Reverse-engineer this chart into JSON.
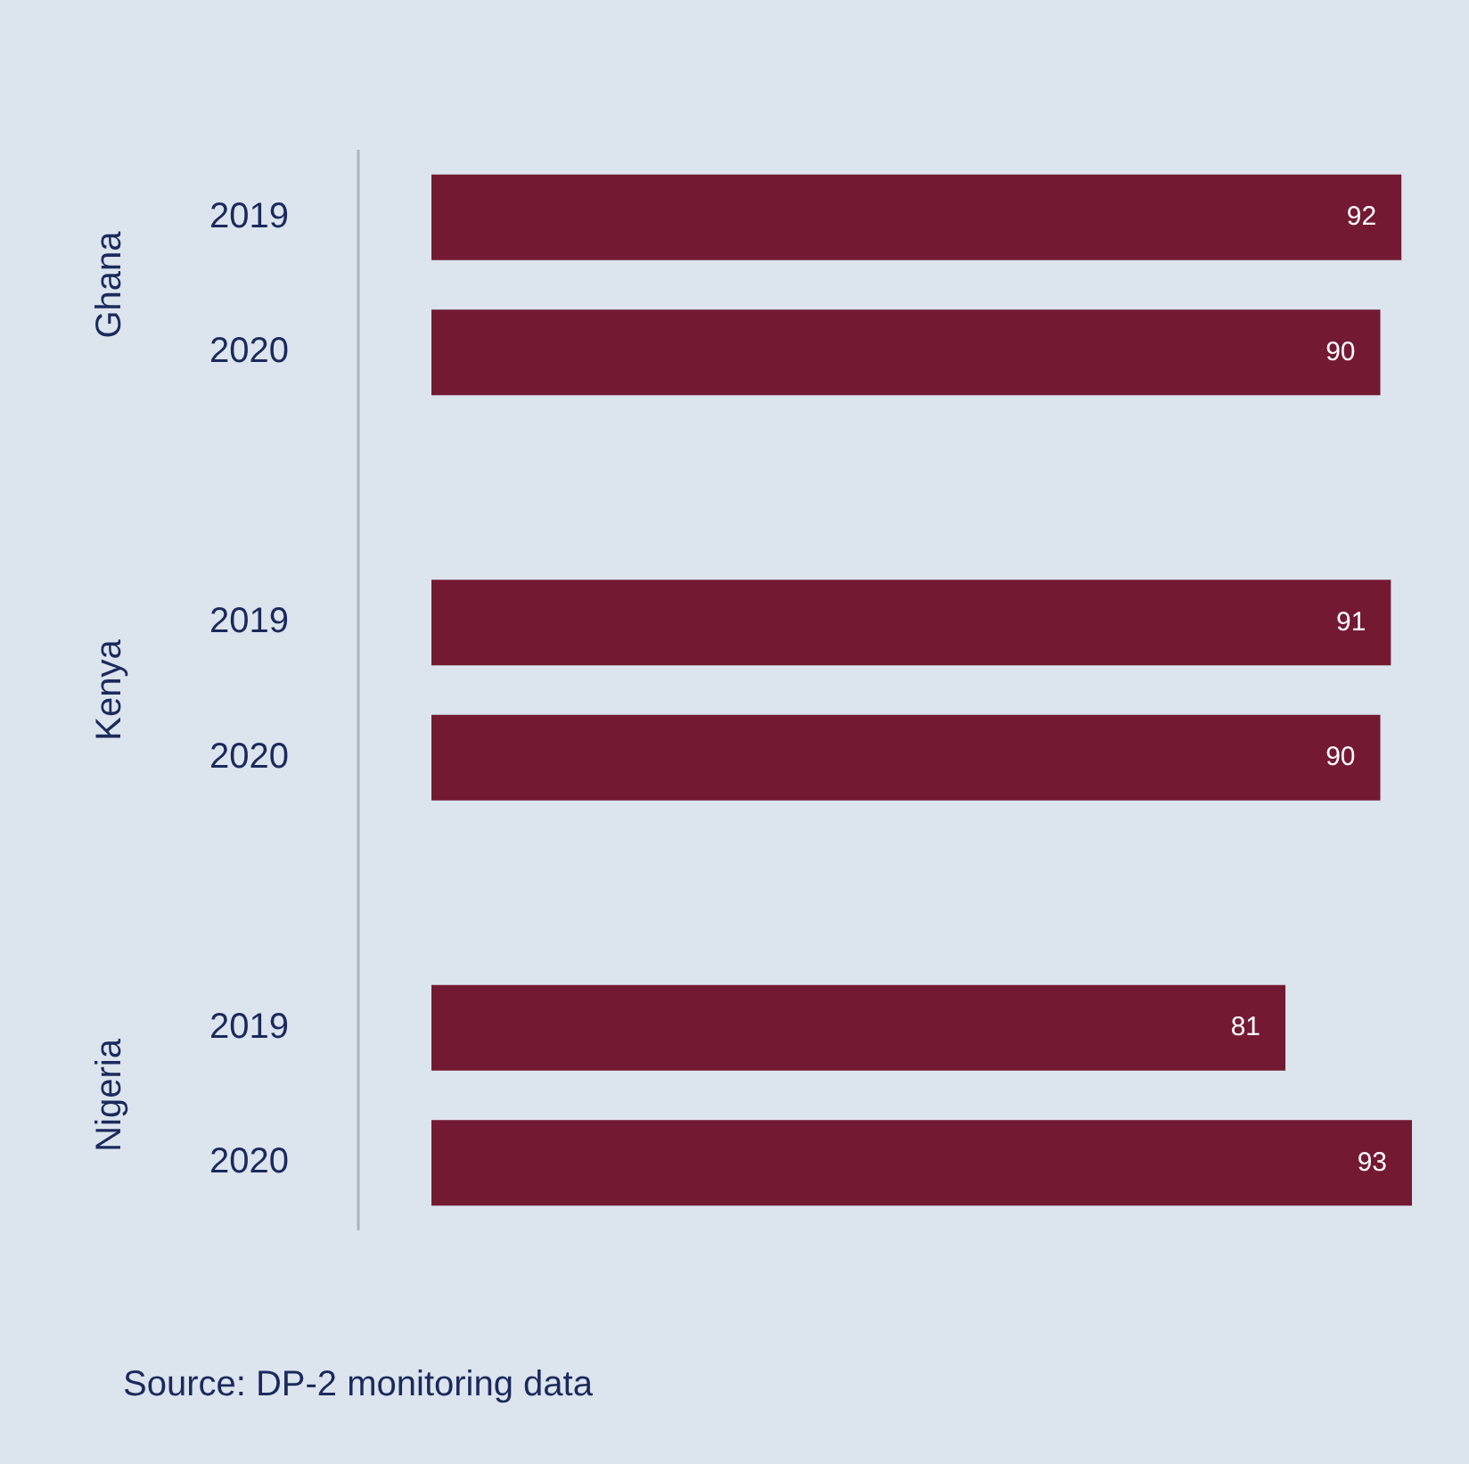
{
  "chart_data": {
    "type": "bar",
    "orientation": "horizontal",
    "categories": [
      "2019",
      "2020",
      null,
      "2019",
      "2020",
      null,
      "2019",
      "2020"
    ],
    "values": [
      92,
      90,
      null,
      91,
      90,
      null,
      81,
      93
    ],
    "color": "#731a32",
    "xlim": [
      0,
      93
    ],
    "tick_labels": "y",
    "legend": false,
    "data_labels": true,
    "annotations": [
      "Ghana",
      "Kenya",
      "Nigeria",
      "Source: DP-2 monitoring data"
    ]
  }
}
